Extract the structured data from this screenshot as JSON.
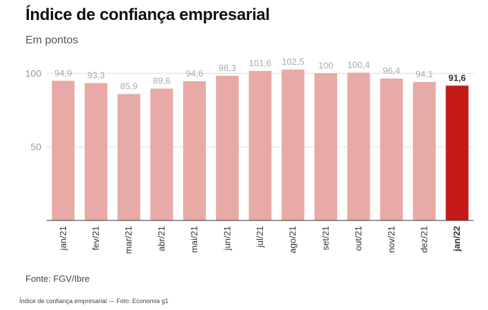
{
  "title": "Índice de confiança empresarial",
  "subtitle": "Em pontos",
  "source": "Fonte: FGV/Ibre",
  "caption": "Índice de confiança empresarial — Foto: Economia g1",
  "colors": {
    "bar": "#e8aaa6",
    "highlight": "#c41a17",
    "grid": "#dddddd",
    "value_label": "#aaaaaa",
    "highlight_label": "#333333",
    "tick_label": "#333333"
  },
  "chart_data": {
    "type": "bar",
    "categories": [
      "jan/21",
      "fev/21",
      "mar/21",
      "abr/21",
      "mai/21",
      "jun/21",
      "jul/21",
      "ago/21",
      "set/21",
      "out/21",
      "nov/21",
      "dez/21",
      "jan/22"
    ],
    "values": [
      94.9,
      93.3,
      85.9,
      89.6,
      94.6,
      98.3,
      101.6,
      102.5,
      100,
      100.4,
      96.4,
      94.1,
      91.6
    ],
    "value_labels": [
      "94,9",
      "93,3",
      "85,9",
      "89,6",
      "94,6",
      "98,3",
      "101,6",
      "102,5",
      "100",
      "100,4",
      "96,4",
      "94,1",
      "91,6"
    ],
    "highlight_index": 12,
    "yticks": [
      50,
      100
    ],
    "ytick_labels": [
      "50",
      "100"
    ],
    "ylim": [
      0,
      110
    ],
    "grid": true,
    "xlabel": "",
    "ylabel": ""
  }
}
